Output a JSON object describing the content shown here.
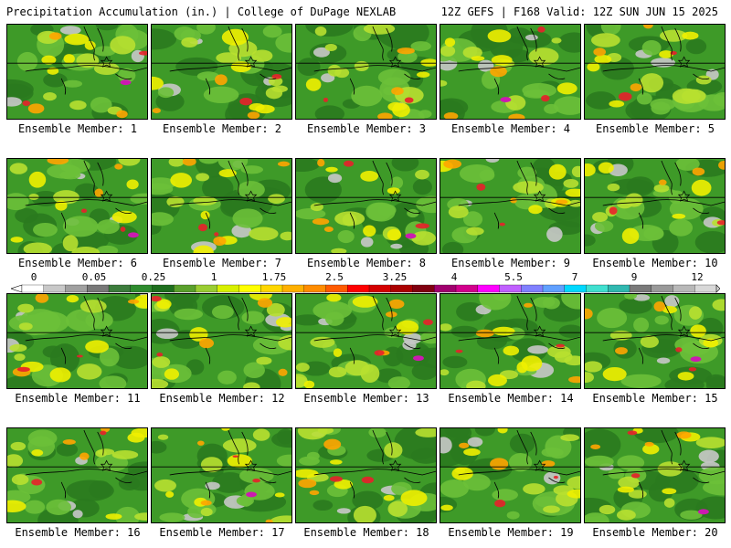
{
  "header": {
    "left": "Precipitation Accumulation (in.) | College of DuPage NEXLAB",
    "right": "12Z GEFS | F168 Valid: 12Z SUN JUN 15 2025"
  },
  "members": [
    {
      "label": "Ensemble Member: 1"
    },
    {
      "label": "Ensemble Member: 2"
    },
    {
      "label": "Ensemble Member: 3"
    },
    {
      "label": "Ensemble Member: 4"
    },
    {
      "label": "Ensemble Member: 5"
    },
    {
      "label": "Ensemble Member: 6"
    },
    {
      "label": "Ensemble Member: 7"
    },
    {
      "label": "Ensemble Member: 8"
    },
    {
      "label": "Ensemble Member: 9"
    },
    {
      "label": "Ensemble Member: 10"
    },
    {
      "label": "Ensemble Member: 11"
    },
    {
      "label": "Ensemble Member: 12"
    },
    {
      "label": "Ensemble Member: 13"
    },
    {
      "label": "Ensemble Member: 14"
    },
    {
      "label": "Ensemble Member: 15"
    },
    {
      "label": "Ensemble Member: 16"
    },
    {
      "label": "Ensemble Member: 17"
    },
    {
      "label": "Ensemble Member: 18"
    },
    {
      "label": "Ensemble Member: 19"
    },
    {
      "label": "Ensemble Member: 20"
    }
  ],
  "colorbar": {
    "tick_labels": [
      "0",
      "0.05",
      "0.25",
      "1",
      "1.75",
      "2.5",
      "3.25",
      "4",
      "5.5",
      "7",
      "9",
      "12"
    ],
    "colors": [
      "#ffffff",
      "#c8c8c8",
      "#a0a0a0",
      "#787878",
      "#3c7c3c",
      "#2e8b2e",
      "#1e6e1e",
      "#5aa02c",
      "#9acd32",
      "#d8f000",
      "#ffff00",
      "#ffd700",
      "#ffb000",
      "#ff8c00",
      "#ff5a00",
      "#ff0000",
      "#d40000",
      "#aa0000",
      "#800010",
      "#a0006e",
      "#d2008c",
      "#ff00ff",
      "#c060ff",
      "#8080ff",
      "#60a0ff",
      "#00d8ff",
      "#40e0d0",
      "#30b8b0",
      "#7a7a7a",
      "#999999",
      "#b8b8b8",
      "#d8d8d8"
    ]
  },
  "palette": {
    "dark_green": "#2a7a1e",
    "green": "#3e9a28",
    "light_green": "#6cc038",
    "lime": "#b8e030",
    "yellow": "#f0f000",
    "orange": "#ffa500",
    "red": "#e8202a",
    "dark_red": "#b0102c",
    "magenta": "#cc1ab0",
    "light_gray": "#c8c8c8",
    "gray": "#999999"
  }
}
